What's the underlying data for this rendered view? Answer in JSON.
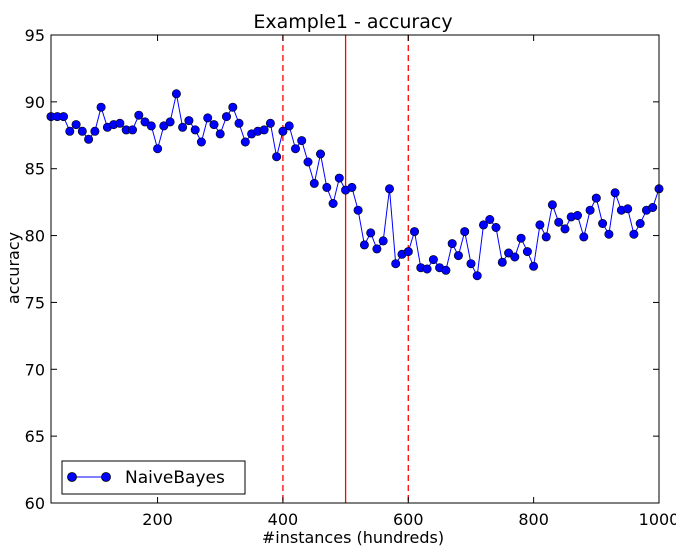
{
  "chart_data": {
    "type": "line",
    "title": "Example1 - accuracy",
    "xlabel": "#instances (hundreds)",
    "ylabel": "accuracy",
    "xlim": [
      30,
      1000
    ],
    "ylim": [
      60,
      95
    ],
    "xticks": [
      200,
      400,
      600,
      800,
      1000
    ],
    "yticks": [
      60,
      65,
      70,
      75,
      80,
      85,
      90,
      95
    ],
    "xtick_labels": [
      "200",
      "400",
      "600",
      "800",
      "1000"
    ],
    "ytick_labels": [
      "60",
      "65",
      "70",
      "75",
      "80",
      "85",
      "90",
      "95"
    ],
    "grid": false,
    "legend_position": "lower-left",
    "series": [
      {
        "name": "NaiveBayes",
        "color": "#0000ff",
        "marker": "circle",
        "x": [
          30,
          40,
          50,
          60,
          70,
          80,
          90,
          100,
          110,
          120,
          130,
          140,
          150,
          160,
          170,
          180,
          190,
          200,
          210,
          220,
          230,
          240,
          250,
          260,
          270,
          280,
          290,
          300,
          310,
          320,
          330,
          340,
          350,
          360,
          370,
          380,
          390,
          400,
          410,
          420,
          430,
          440,
          450,
          460,
          470,
          480,
          490,
          500,
          510,
          520,
          530,
          540,
          550,
          560,
          570,
          580,
          590,
          600,
          610,
          620,
          630,
          640,
          650,
          660,
          670,
          680,
          690,
          700,
          710,
          720,
          730,
          740,
          750,
          760,
          770,
          780,
          790,
          800,
          810,
          820,
          830,
          840,
          850,
          860,
          870,
          880,
          890,
          900,
          910,
          920,
          930,
          940,
          950,
          960,
          970,
          980,
          990,
          1000
        ],
        "y": [
          88.9,
          88.9,
          88.9,
          87.8,
          88.3,
          87.8,
          87.2,
          87.8,
          89.6,
          88.1,
          88.3,
          88.4,
          87.9,
          87.9,
          89.0,
          88.5,
          88.2,
          86.5,
          88.2,
          88.5,
          90.6,
          88.1,
          88.6,
          87.9,
          87.0,
          88.8,
          88.3,
          87.6,
          88.9,
          89.6,
          88.4,
          87.0,
          87.6,
          87.8,
          87.9,
          88.4,
          85.9,
          87.8,
          88.2,
          86.5,
          87.1,
          85.5,
          83.9,
          86.1,
          83.6,
          82.4,
          84.3,
          83.4,
          83.6,
          81.9,
          79.3,
          80.2,
          79.0,
          79.6,
          83.5,
          77.9,
          78.6,
          78.8,
          80.3,
          77.6,
          77.5,
          78.2,
          77.6,
          77.4,
          79.4,
          78.5,
          80.3,
          77.9,
          77.0,
          80.8,
          81.2,
          80.6,
          78.0,
          78.7,
          78.4,
          79.8,
          78.8,
          77.7,
          80.8,
          79.9,
          82.3,
          81.0,
          80.5,
          81.4,
          81.5,
          79.9,
          81.9,
          82.8,
          80.9,
          80.1,
          83.2,
          81.9,
          82.0,
          80.1,
          80.9,
          81.9,
          82.1,
          83.5
        ]
      }
    ],
    "vertical_lines": [
      {
        "x": 400,
        "style": "dashed",
        "color": "#ff0000"
      },
      {
        "x": 500,
        "style": "solid",
        "color": "#ff0000"
      },
      {
        "x": 600,
        "style": "dashed",
        "color": "#ff0000"
      }
    ]
  }
}
